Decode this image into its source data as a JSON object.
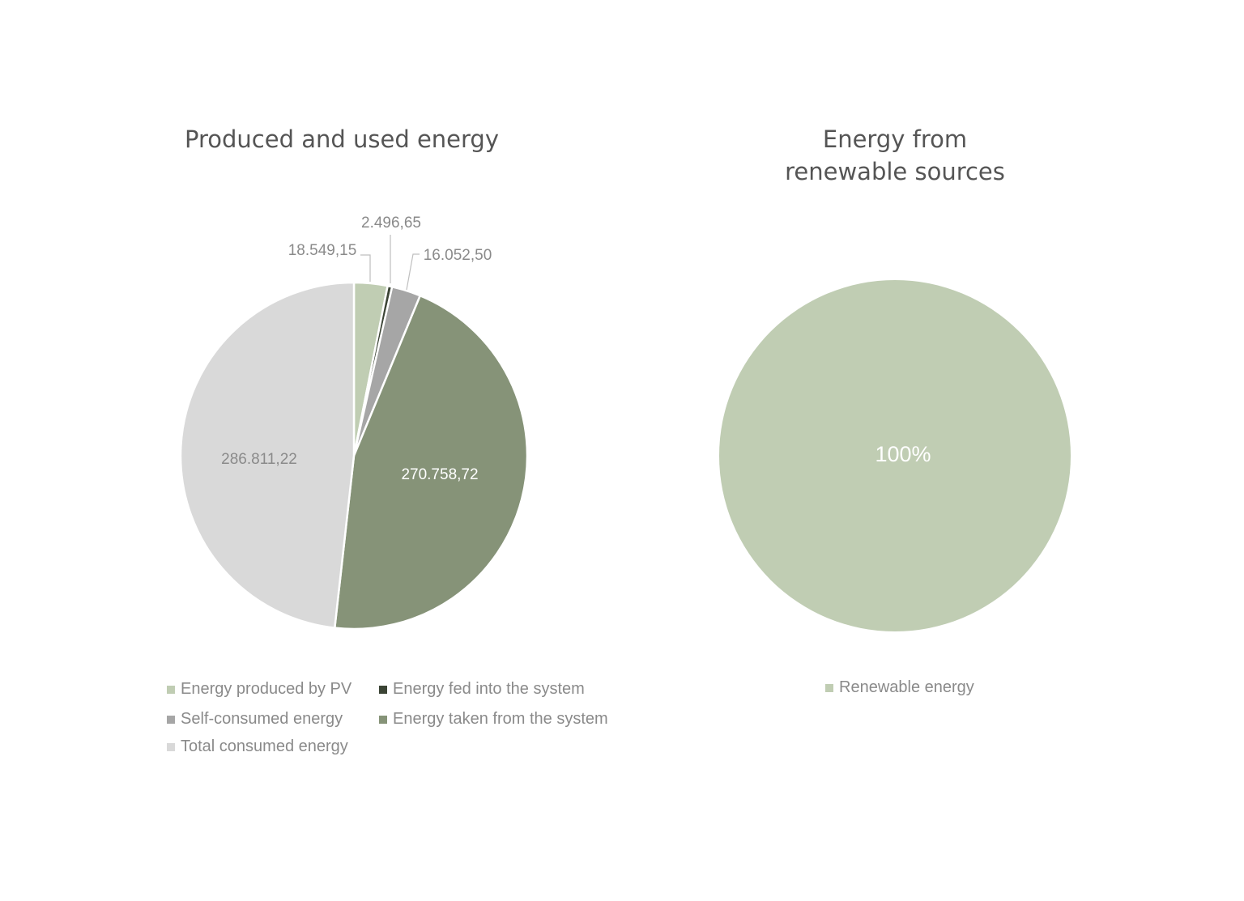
{
  "chart_data": [
    {
      "type": "pie",
      "title": "Produced and used energy",
      "slices": [
        {
          "label": "Energy produced by PV",
          "value": 18549.15,
          "value_text": "18.549,15",
          "color": "#c0cdb3"
        },
        {
          "label": "Energy fed into the system",
          "value": 2496.65,
          "value_text": "2.496,65",
          "color": "#3b4435"
        },
        {
          "label": "Self-consumed energy",
          "value": 16052.5,
          "value_text": "16.052,50",
          "color": "#a6a6a6"
        },
        {
          "label": "Energy taken from the system",
          "value": 270758.72,
          "value_text": "270.758,72",
          "color": "#869378"
        },
        {
          "label": "Total consumed energy",
          "value": 286811.22,
          "value_text": "286.811,22",
          "color": "#d9d9d9"
        }
      ],
      "legend_position": "bottom"
    },
    {
      "type": "pie",
      "title_lines": [
        "Energy from",
        "renewable sources"
      ],
      "slices": [
        {
          "label": "Renewable energy",
          "value": 100,
          "value_text": "100%",
          "color": "#c0cdb3"
        }
      ],
      "legend_position": "bottom"
    }
  ]
}
